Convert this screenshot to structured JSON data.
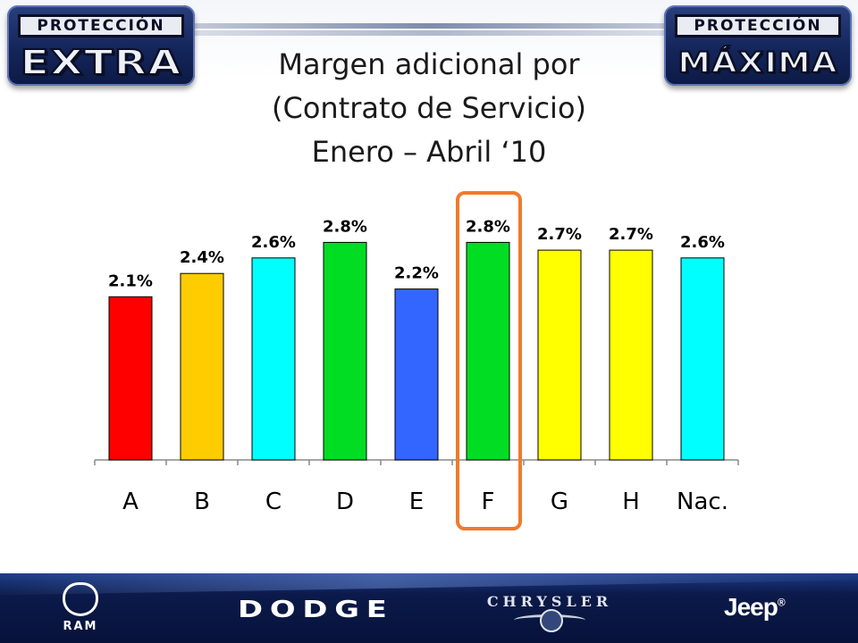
{
  "header": {
    "left_logo": {
      "tag": "PROTECCIÓN",
      "word": "EXTRA"
    },
    "right_logo": {
      "tag": "PROTECCIÓN",
      "word": "MÁXIMA"
    },
    "title_lines": [
      "Margen adicional por",
      "(Contrato de Servicio)",
      "Enero – Abril ‘10"
    ]
  },
  "chart_data": {
    "type": "bar",
    "title": "Margen adicional por (Contrato de Servicio) Enero – Abril ‘10",
    "categories": [
      "A",
      "B",
      "C",
      "D",
      "E",
      "F",
      "G",
      "H",
      "Nac."
    ],
    "values": [
      2.1,
      2.4,
      2.6,
      2.8,
      2.2,
      2.8,
      2.7,
      2.7,
      2.6
    ],
    "value_labels": [
      "2.1%",
      "2.4%",
      "2.6%",
      "2.8%",
      "2.2%",
      "2.8%",
      "2.7%",
      "2.7%",
      "2.6%"
    ],
    "colors": [
      "#ff0000",
      "#ffcc00",
      "#00ffff",
      "#00dd22",
      "#3366ff",
      "#00dd22",
      "#ffff00",
      "#ffff00",
      "#00ffff"
    ],
    "highlighted_category": "F",
    "highlight_color": "#f07a2c",
    "xlabel": "",
    "ylabel": "",
    "grid": false,
    "legend": "none"
  },
  "footer": {
    "brands": [
      {
        "name": "RAM",
        "icon": "ram-head-icon"
      },
      {
        "name": "DODGE"
      },
      {
        "name": "CHRYSLER",
        "icon": "chrysler-wings-icon"
      },
      {
        "name": "Jeep",
        "mark": "®"
      }
    ]
  }
}
